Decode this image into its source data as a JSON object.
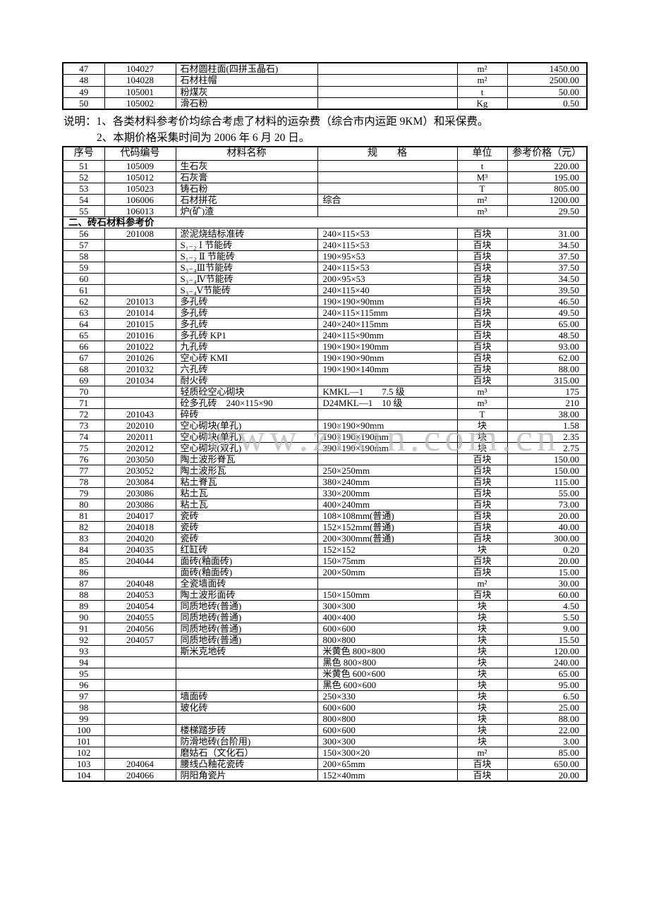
{
  "watermark": {
    "text": "www.zixin.com.cn",
    "color": "#b9b9b9"
  },
  "notes": {
    "line1": "说明：1、各类材料参考价均综合考虑了材料的运杂费（综合市内运距 9KM）和采保费。",
    "line2": "2、本期价格采集时间为 2006 年 6 月 20 日。"
  },
  "table1": {
    "rows": [
      [
        "47",
        "104027",
        "石材圆柱面(四拼玉晶石)",
        "",
        "m²",
        "1450.00"
      ],
      [
        "48",
        "104028",
        "石材柱帽",
        "",
        "m²",
        "2500.00"
      ],
      [
        "49",
        "105001",
        "粉煤灰",
        "",
        "t",
        "50.00"
      ],
      [
        "50",
        "105002",
        "滑石粉",
        "",
        "Kg",
        "0.50"
      ]
    ]
  },
  "table2": {
    "headers": [
      "序号",
      "代码编号",
      "材料名称",
      "规　　格",
      "单位",
      "参考价格（元）"
    ],
    "rows": [
      [
        "51",
        "105009",
        "生石灰",
        "",
        "t",
        "220.00"
      ],
      [
        "52",
        "105012",
        "石灰膏",
        "",
        "M³",
        "195.00"
      ],
      [
        "53",
        "105023",
        "铸石粉",
        "",
        "T",
        "805.00"
      ],
      [
        "54",
        "106006",
        "石材拼花",
        "综合",
        "m²",
        "1200.00"
      ],
      [
        "55",
        "106013",
        "炉(矿)渣",
        "",
        "m³",
        "29.50"
      ],
      [
        "二、砖石材料参考价"
      ],
      [
        "56",
        "201008",
        "淤泥烧结标准砖",
        "240×115×53",
        "百块",
        "31.00"
      ],
      [
        "57",
        "",
        "S₁₋₂ Ⅰ 节能砖",
        "240×115×53",
        "百块",
        "34.50"
      ],
      [
        "58",
        "",
        "S₁₋₂ Ⅱ 节能砖",
        "190×95×53",
        "百块",
        "37.50"
      ],
      [
        "59",
        "",
        "S₃₋₄Ⅲ节能砖",
        "240×115×53",
        "百块",
        "37.50"
      ],
      [
        "60",
        "",
        "S₃₋₄Ⅳ节能砖",
        "200×95×53",
        "百块",
        "34.50"
      ],
      [
        "61",
        "",
        "S₃₋₄Ⅴ节能砖",
        "240×115×40",
        "百块",
        "39.50"
      ],
      [
        "62",
        "201013",
        "多孔砖",
        "190×190×90mm",
        "百块",
        "46.50"
      ],
      [
        "63",
        "201014",
        "多孔砖",
        "240×115×115mm",
        "百块",
        "49.50"
      ],
      [
        "64",
        "201015",
        "多孔砖",
        "240×240×115mm",
        "百块",
        "65.00"
      ],
      [
        "65",
        "201016",
        "多孔砖 KP1",
        "240×115×90mm",
        "百块",
        "48.50"
      ],
      [
        "66",
        "201022",
        "九孔砖",
        "190×190×190mm",
        "百块",
        "93.00"
      ],
      [
        "67",
        "201026",
        "空心砖 KMI",
        "190×190×90mm",
        "百块",
        "62.00"
      ],
      [
        "68",
        "201032",
        "六孔砖",
        "190×190×140mm",
        "百块",
        "88.00"
      ],
      [
        "69",
        "201034",
        "耐火砖",
        "",
        "百块",
        "315.00"
      ],
      [
        "70",
        "",
        "轻质砼空心砌块",
        "KMKL—1　　7.5 级",
        "m³",
        "175"
      ],
      [
        "71",
        "",
        "砼多孔砖　240×115×90",
        "D24MKL—1　10 级",
        "m³",
        "210"
      ],
      [
        "72",
        "201043",
        "碎砖",
        "",
        "T",
        "38.00"
      ],
      [
        "73",
        "202010",
        "空心砌块(单孔)",
        "190×190×90mm",
        "块",
        "1.58"
      ],
      [
        "74",
        "202011",
        "空心砌块(单孔)",
        "190×190×190mm",
        "块",
        "2.35"
      ],
      [
        "75",
        "202012",
        "空心砌块(双孔)",
        "390×190×190mm",
        "块",
        "2.75"
      ],
      [
        "76",
        "203050",
        "陶土波形脊瓦",
        "",
        "百块",
        "150.00"
      ],
      [
        "77",
        "203052",
        "陶土波形瓦",
        "250×250mm",
        "百块",
        "150.00"
      ],
      [
        "78",
        "203084",
        "粘土脊瓦",
        "380×240mm",
        "百块",
        "115.00"
      ],
      [
        "79",
        "203086",
        "粘土瓦",
        "330×200mm",
        "百块",
        "55.00"
      ],
      [
        "80",
        "203086",
        "粘土瓦",
        "400×240mm",
        "百块",
        "73.00"
      ],
      [
        "81",
        "204017",
        "瓷砖",
        "108×108mm(普通)",
        "百块",
        "20.00"
      ],
      [
        "82",
        "204018",
        "瓷砖",
        "152×152mm(普通)",
        "百块",
        "40.00"
      ],
      [
        "83",
        "204020",
        "瓷砖",
        "200×300mm(普通)",
        "百块",
        "300.00"
      ],
      [
        "84",
        "204035",
        "红缸砖",
        "152×152",
        "块",
        "0.20"
      ],
      [
        "85",
        "204044",
        "面砖(釉面砖)",
        "150×75mm",
        "百块",
        "20.00"
      ],
      [
        "86",
        "",
        "面砖(釉面砖)",
        "200×50mm",
        "百块",
        "15.00"
      ],
      [
        "87",
        "204048",
        "全瓷墙面砖",
        "",
        "m²",
        "30.00"
      ],
      [
        "88",
        "204053",
        "陶土波形面砖",
        "150×150mm",
        "百块",
        "60.00"
      ],
      [
        "89",
        "204054",
        "同质地砖(普通)",
        "300×300",
        "块",
        "4.50"
      ],
      [
        "90",
        "204055",
        "同质地砖(普通)",
        "400×400",
        "块",
        "5.50"
      ],
      [
        "91",
        "204056",
        "同质地砖(普通)",
        "600×600",
        "块",
        "9.00"
      ],
      [
        "92",
        "204057",
        "同质地砖(普通)",
        "800×800",
        "块",
        "15.50"
      ],
      [
        "93",
        "",
        "斯米克地砖",
        "米黄色 800×800",
        "块",
        "120.00"
      ],
      [
        "94",
        "",
        "",
        "黑色 800×800",
        "块",
        "240.00"
      ],
      [
        "95",
        "",
        "",
        "米黄色 600×600",
        "块",
        "65.00"
      ],
      [
        "96",
        "",
        "",
        "黑色 600×600",
        "块",
        "95.00"
      ],
      [
        "97",
        "",
        "墙面砖",
        "250×330",
        "块",
        "6.50"
      ],
      [
        "98",
        "",
        "玻化砖",
        "600×600",
        "块",
        "25.00"
      ],
      [
        "99",
        "",
        "",
        "800×800",
        "块",
        "88.00"
      ],
      [
        "100",
        "",
        "楼梯踏步砖",
        "600×600",
        "块",
        "22.00"
      ],
      [
        "101",
        "",
        "防滑地砖(台阶用)",
        "300×300",
        "块",
        "3.00"
      ],
      [
        "102",
        "",
        "磨姑石（文化石）",
        "150×300×20",
        "m²",
        "85.00"
      ],
      [
        "103",
        "204064",
        "腰线凸釉花瓷砖",
        "200×65mm",
        "百块",
        "650.00"
      ],
      [
        "104",
        "204066",
        "阴阳角瓷片",
        "152×40mm",
        "百块",
        "20.00"
      ]
    ]
  }
}
